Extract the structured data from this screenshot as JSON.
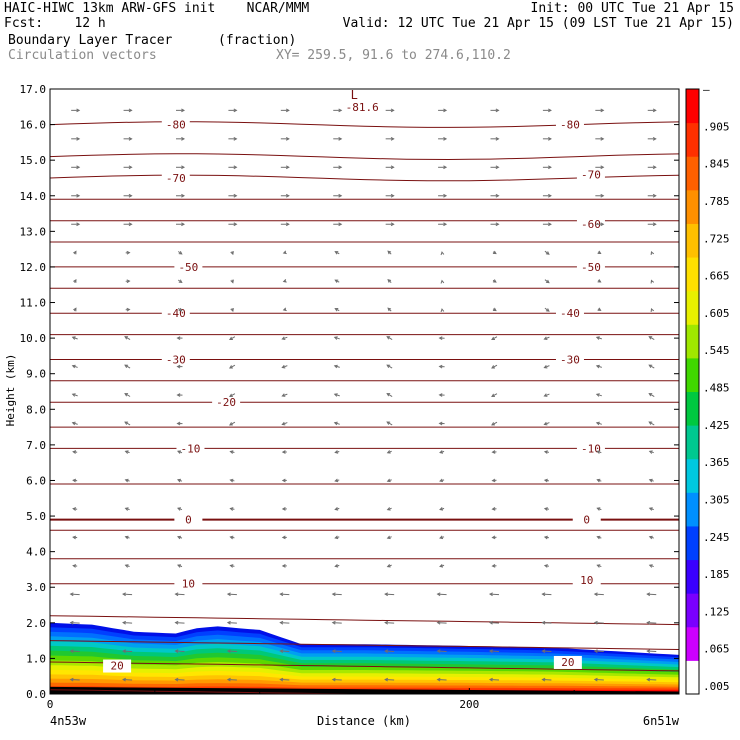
{
  "header": {
    "line1_left": "HAIC-HIWC 13km ARW-GFS init    NCAR/MMM",
    "line1_right": "Init: 00 UTC Tue 21 Apr 15",
    "line2_left": "Fcst:    12 h",
    "line2_right": "Valid: 12 UTC Tue 21 Apr 15 (09 LST Tue 21 Apr 15)",
    "line3_left": "Boundary Layer Tracer",
    "line3_units": "(fraction)",
    "line4_left": "Circulation vectors",
    "line4_xy": "XY= 259.5, 91.6 to 274.6,110.2"
  },
  "colors": {
    "contour": "#7a1010",
    "vector": "#6e6e6e",
    "tracer_bands": [
      "#ffffff",
      "#ff0000",
      "#ff3a00",
      "#ff6a00",
      "#ff9a00",
      "#ffc400",
      "#ffe600",
      "#e6f000",
      "#a8e800",
      "#5cd800",
      "#20c830",
      "#00c878",
      "#00c8c8",
      "#00a0f0",
      "#0070ff",
      "#0040ff",
      "#0010e8"
    ]
  },
  "chart_data": {
    "type": "cross-section",
    "xlabel": "Distance (km)",
    "ylabel": "Height (km)",
    "xlim": [
      0,
      300
    ],
    "ylim": [
      0,
      17
    ],
    "x_ticks": [
      {
        "value": 0,
        "label": "0"
      },
      {
        "value": 200,
        "label": "200"
      }
    ],
    "x_end_labels": {
      "left": "4n53w",
      "right": "6n51w"
    },
    "y_ticks": [
      "0.0",
      "1.0",
      "2.0",
      "3.0",
      "4.0",
      "5.0",
      "6.0",
      "7.0",
      "8.0",
      "9.0",
      "10.0",
      "11.0",
      "12.0",
      "13.0",
      "14.0",
      "15.0",
      "16.0",
      "17.0"
    ],
    "colorbar_labels": [
      ".005",
      ".065",
      ".125",
      ".185",
      ".245",
      ".305",
      ".365",
      ".425",
      ".485",
      ".545",
      ".605",
      ".665",
      ".725",
      ".785",
      ".845",
      ".905",
      "–"
    ],
    "low_marker": {
      "symbol": "L",
      "value": "-81.6",
      "x": 147,
      "z": 16.6
    },
    "contour_labels": [
      {
        "text": "-80",
        "x": 60,
        "z": 16.0
      },
      {
        "text": "-80",
        "x": 248,
        "z": 16.0
      },
      {
        "text": "-70",
        "x": 60,
        "z": 14.5
      },
      {
        "text": "-70",
        "x": 258,
        "z": 14.6
      },
      {
        "text": "-60",
        "x": 258,
        "z": 13.2
      },
      {
        "text": "-50",
        "x": 66,
        "z": 12.0
      },
      {
        "text": "-50",
        "x": 258,
        "z": 12.0
      },
      {
        "text": "-40",
        "x": 60,
        "z": 10.7
      },
      {
        "text": "-40",
        "x": 248,
        "z": 10.7
      },
      {
        "text": "-30",
        "x": 60,
        "z": 9.4
      },
      {
        "text": "-30",
        "x": 248,
        "z": 9.4
      },
      {
        "text": "-20",
        "x": 84,
        "z": 8.2
      },
      {
        "text": "-10",
        "x": 67,
        "z": 6.9
      },
      {
        "text": "-10",
        "x": 258,
        "z": 6.9
      },
      {
        "text": "0",
        "x": 66,
        "z": 4.9
      },
      {
        "text": "0",
        "x": 256,
        "z": 4.9
      },
      {
        "text": "10",
        "x": 66,
        "z": 3.1
      },
      {
        "text": "10",
        "x": 256,
        "z": 3.2
      },
      {
        "text": "20",
        "x": 32,
        "z": 0.8
      },
      {
        "text": "20",
        "x": 247,
        "z": 0.9
      }
    ],
    "boundary_layer_top": [
      [
        0,
        2.0
      ],
      [
        20,
        1.95
      ],
      [
        40,
        1.75
      ],
      [
        60,
        1.7
      ],
      [
        70,
        1.85
      ],
      [
        80,
        1.9
      ],
      [
        100,
        1.8
      ],
      [
        120,
        1.4
      ],
      [
        150,
        1.4
      ],
      [
        200,
        1.35
      ],
      [
        240,
        1.3
      ],
      [
        270,
        1.2
      ],
      [
        300,
        1.1
      ]
    ]
  }
}
